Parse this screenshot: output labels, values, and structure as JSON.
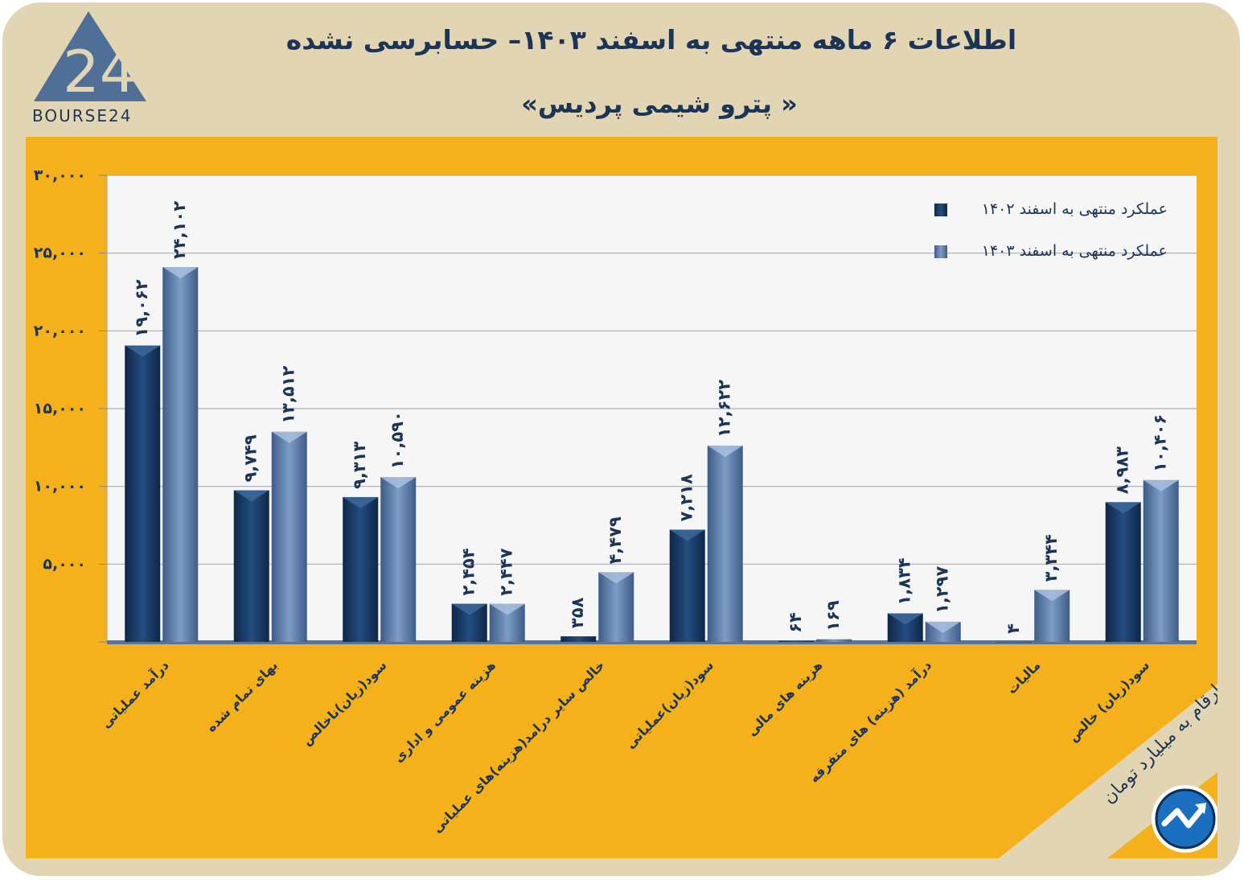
{
  "header": {
    "title": "اطلاعات ۶ ماهه منتهی به اسفند ۱۴۰۳– حسابرسی نشده",
    "subtitle": "« پترو شیمی پردیس»"
  },
  "logo": {
    "text": "BOURSE24",
    "mark": "24",
    "icon": "bourse24-triangle-logo"
  },
  "badge": {
    "icon": "trend-arrow-icon"
  },
  "note": "ارقام به میلیارد تومان",
  "colors": {
    "panel": "#f5b11b",
    "frame": "#e2d5b4",
    "series1": "#173a66",
    "series2": "#5e7fab",
    "text": "#1c3556"
  },
  "chart_data": {
    "type": "bar",
    "categories": [
      "درآمد عملیاتی",
      "بهای تمام شده",
      "سود(زیان)ناخالص",
      "هزینه عمومی و اداری",
      "خالص سایر درامد(هزینه)های عملیاتی",
      "سود(زیان)عملیاتی",
      "هزینه های مالی",
      "درآمد (هزینه) های متفرقه",
      "مالیات",
      "سود(زیان) خالص"
    ],
    "series": [
      {
        "name": "عملکرد منتهی به اسفند ۱۴۰۲",
        "values": [
          19062,
          9749,
          9313,
          2454,
          358,
          7218,
          64,
          1834,
          4,
          8983
        ],
        "labels": [
          "۱۹,۰۶۲",
          "۹,۷۴۹",
          "۹,۳۱۳",
          "۲,۴۵۴",
          "۳۵۸",
          "۷,۲۱۸",
          "۶۴",
          "۱,۸۳۴",
          "۴",
          "۸,۹۸۳"
        ]
      },
      {
        "name": "عملکرد منتهی به اسفند ۱۴۰۳",
        "values": [
          24102,
          13512,
          10590,
          2447,
          4479,
          12622,
          169,
          1297,
          3344,
          10406
        ],
        "labels": [
          "۲۴,۱۰۲",
          "۱۳,۵۱۲",
          "۱۰,۵۹۰",
          "۲,۴۴۷",
          "۴,۴۷۹",
          "۱۲,۶۲۲",
          "۱۶۹",
          "۱,۲۹۷",
          "۳,۳۴۴",
          "۱۰,۴۰۶"
        ]
      }
    ],
    "yticks": [
      0,
      5000,
      10000,
      15000,
      20000,
      25000,
      30000
    ],
    "ytick_labels": [
      "",
      "۵,۰۰۰",
      "۱۰,۰۰۰",
      "۱۵,۰۰۰",
      "۲۰,۰۰۰",
      "۲۵,۰۰۰",
      "۳۰,۰۰۰"
    ],
    "ylim": [
      0,
      30000
    ],
    "grid": true,
    "legend_position": "top-right"
  }
}
